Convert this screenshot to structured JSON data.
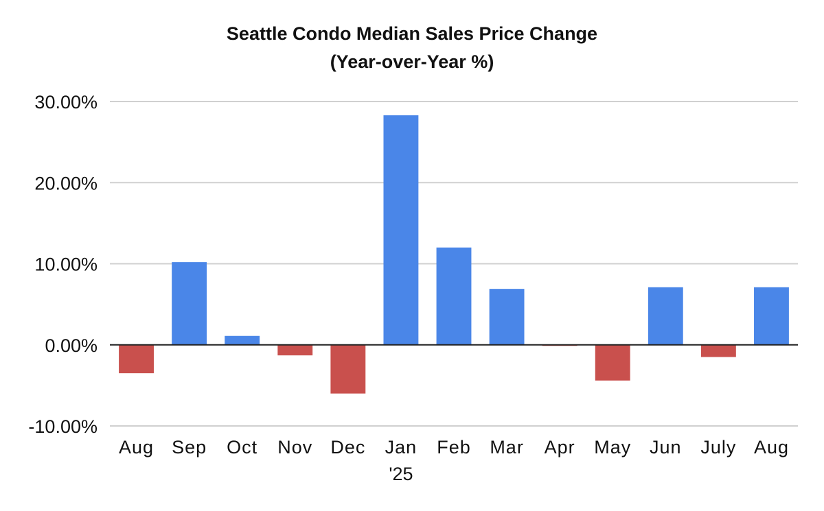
{
  "chart_data": {
    "type": "bar",
    "title": "Seattle Condo Median Sales Price Change",
    "subtitle": "(Year-over-Year %)",
    "xlabel": "",
    "ylabel": "",
    "categories": [
      "Aug",
      "Sep",
      "Oct",
      "Nov",
      "Dec",
      "Jan",
      "Feb",
      "Mar",
      "Apr",
      "May",
      "Jun",
      "July",
      "Aug"
    ],
    "category_sublabels": [
      "",
      "",
      "",
      "",
      "",
      "'25",
      "",
      "",
      "",
      "",
      "",
      "",
      ""
    ],
    "values": [
      -3.5,
      10.2,
      1.1,
      -1.3,
      -6.0,
      28.3,
      12.0,
      6.9,
      -0.1,
      -4.4,
      7.1,
      -1.5,
      7.1
    ],
    "ylim": [
      -10,
      30
    ],
    "yticks": [
      -10,
      0,
      10,
      20,
      30
    ],
    "ytick_labels": [
      "-10.00%",
      "0.00%",
      "10.00%",
      "20.00%",
      "30.00%"
    ],
    "grid": true,
    "legend": "none",
    "colors": {
      "positive": "#4a86e8",
      "negative": "#c9504d",
      "gridline": "#d0d0d0",
      "zero_line": "#222222",
      "text": "#111111"
    }
  }
}
